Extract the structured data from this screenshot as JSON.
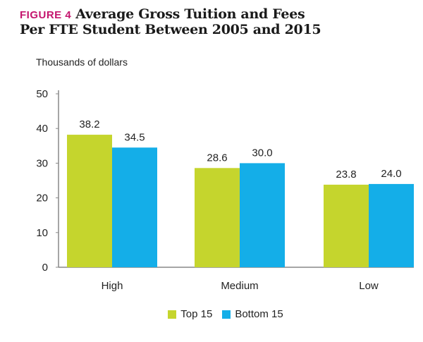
{
  "figure_label": "FIGURE 4",
  "title_line1": "Average Gross Tuition and Fees",
  "title_line2": "Per FTE Student Between 2005 and 2015",
  "colors": {
    "top15": "#c5d52d",
    "bottom15": "#14aee8",
    "axis": "#888888",
    "accent": "#c4156e"
  },
  "chart_data": {
    "type": "bar",
    "ylabel": "Thousands of dollars",
    "xlabel": "",
    "ylim": [
      0,
      50
    ],
    "yticks": [
      0,
      10,
      20,
      30,
      40,
      50
    ],
    "categories": [
      "High",
      "Medium",
      "Low"
    ],
    "series": [
      {
        "name": "Top 15",
        "values": [
          38.2,
          28.6,
          23.8
        ],
        "labels": [
          "38.2",
          "28.6",
          "23.8"
        ]
      },
      {
        "name": "Bottom 15",
        "values": [
          34.5,
          30.0,
          24.0
        ],
        "labels": [
          "34.5",
          "30.0",
          "24.0"
        ]
      }
    ],
    "legend_position": "bottom-center",
    "grid": false
  }
}
